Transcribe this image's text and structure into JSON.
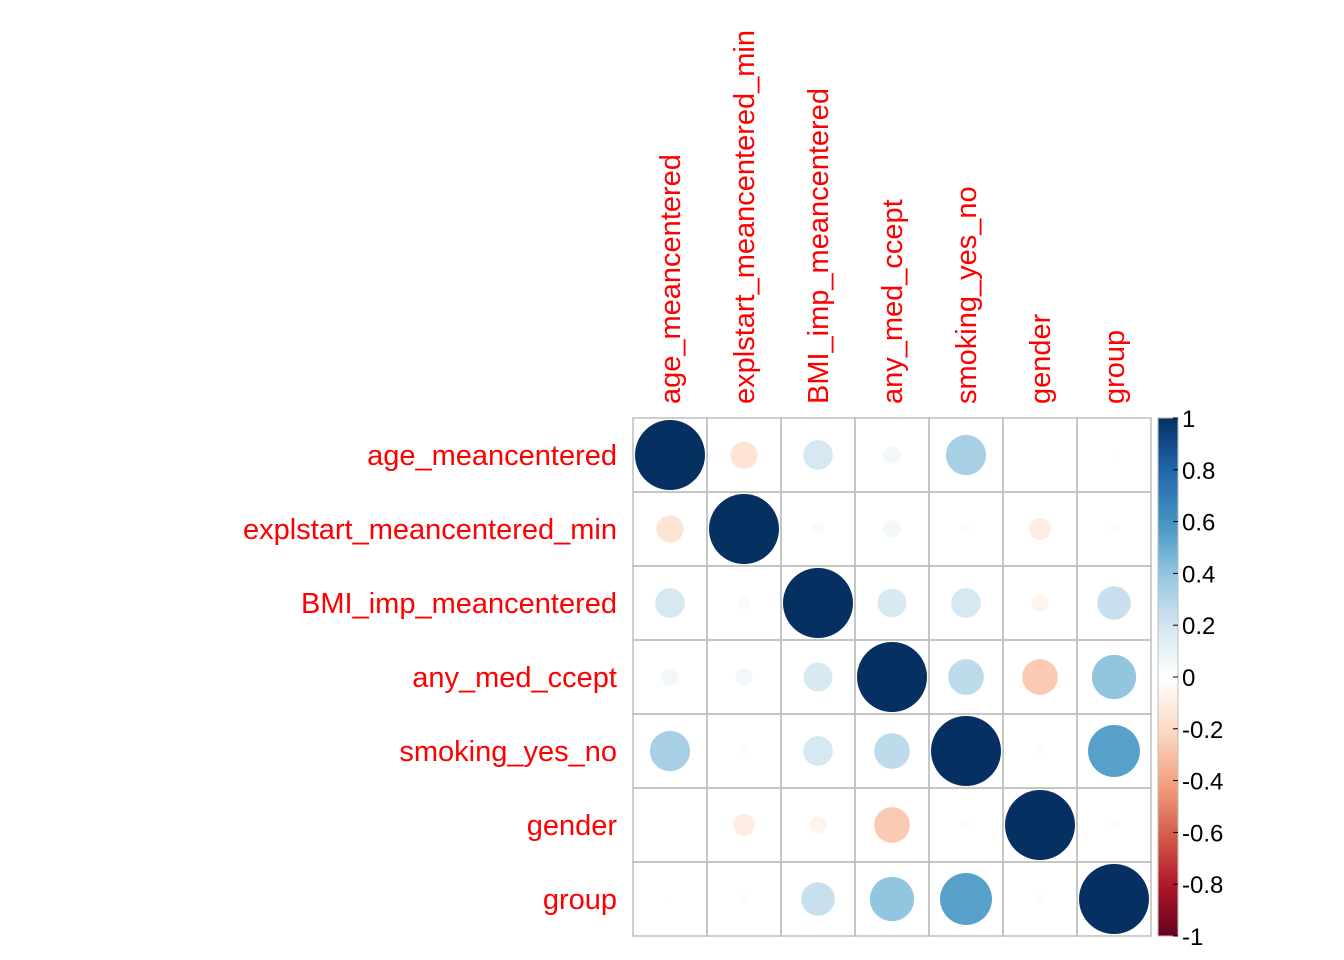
{
  "chart_data": {
    "type": "heatmap",
    "title": "",
    "variables": [
      "age_meancentered",
      "explstart_meancentered_min",
      "BMI_imp_meancentered",
      "any_med_ccept",
      "smoking_yes_no",
      "gender",
      "group"
    ],
    "matrix": [
      [
        1.0,
        -0.15,
        0.18,
        0.06,
        0.33,
        0.0,
        0.01
      ],
      [
        -0.15,
        1.0,
        0.03,
        0.06,
        0.02,
        -0.1,
        0.02
      ],
      [
        0.18,
        0.03,
        1.0,
        0.17,
        0.18,
        -0.06,
        0.23
      ],
      [
        0.06,
        0.06,
        0.17,
        1.0,
        0.26,
        -0.26,
        0.4
      ],
      [
        0.33,
        0.02,
        0.18,
        0.26,
        1.0,
        0.02,
        0.55
      ],
      [
        0.0,
        -0.1,
        -0.06,
        -0.26,
        0.02,
        1.0,
        0.02
      ],
      [
        0.01,
        0.02,
        0.23,
        0.4,
        0.55,
        0.02,
        1.0
      ]
    ],
    "color_scale": {
      "range": [
        -1,
        1
      ],
      "ticks": [
        "1",
        "0.8",
        "0.6",
        "0.4",
        "0.2",
        "0",
        "-0.2",
        "-0.4",
        "-0.6",
        "-0.8",
        "-1"
      ],
      "tick_values": [
        1,
        0.8,
        0.6,
        0.4,
        0.2,
        0,
        -0.2,
        -0.4,
        -0.6,
        -0.8,
        -1
      ],
      "colors": [
        "#67001F",
        "#B2182B",
        "#D6604D",
        "#F4A582",
        "#FDDBC7",
        "#FFFFFF",
        "#D1E5F0",
        "#92C5DE",
        "#4393C3",
        "#2166AC",
        "#053061"
      ]
    },
    "label_color": "#FF0000",
    "grid": true,
    "legend": "right"
  }
}
